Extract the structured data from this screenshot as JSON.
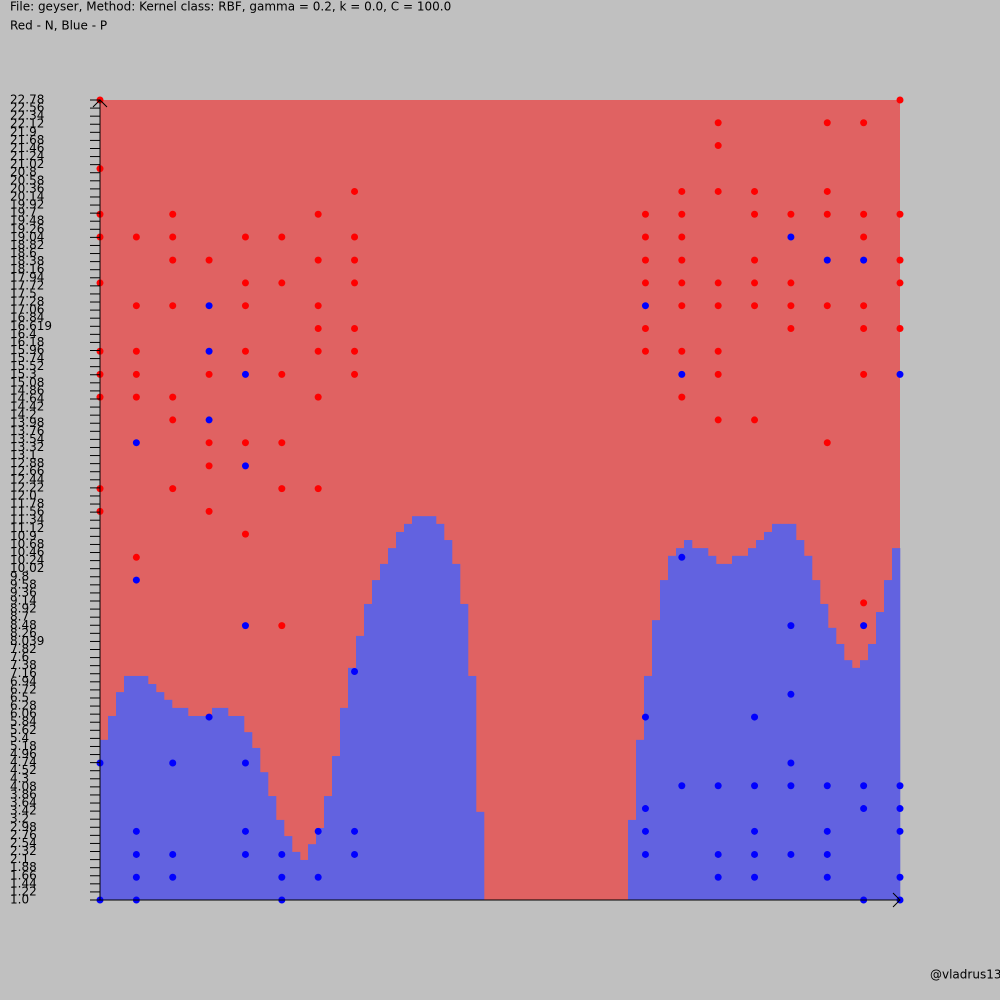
{
  "chart_data": {
    "type": "svm-regions",
    "title": "File: geyser, Method: Kernel class: RBF, gamma = 0.2, k = 0.0, C = 100.0",
    "subtitle": "Red - N, Blue - P",
    "credit": "@vladrus13",
    "xlim": [
      0,
      22
    ],
    "ylim": [
      1,
      22.78
    ],
    "yticks": [
      {
        "value": 1,
        "label": "1.0"
      },
      1.22,
      1.44,
      1.66,
      1.88,
      2.1,
      2.32,
      2.54,
      2.76,
      2.98,
      3.2,
      3.42,
      3.64,
      3.86,
      4.08,
      4.3,
      4.52,
      4.74,
      4.96,
      5.18,
      5.4,
      5.62,
      5.84,
      6.06,
      6.28,
      6.5,
      6.72,
      6.94,
      7.16,
      7.38,
      7.6,
      7.82,
      8.039,
      8.26,
      8.48,
      8.7,
      8.92,
      9.14,
      9.36,
      9.58,
      9.8,
      10.02,
      10.24,
      10.46,
      10.68,
      10.9,
      11.12,
      11.34,
      11.56,
      11.78,
      {
        "value": 12,
        "label": "12.0"
      },
      12.22,
      12.44,
      12.66,
      12.88,
      13.1,
      13.32,
      13.54,
      13.76,
      13.98,
      14.2,
      14.42,
      14.64,
      14.86,
      15.08,
      15.3,
      15.52,
      15.74,
      15.96,
      16.18,
      16.4,
      16.619,
      16.84,
      17.06,
      17.28,
      17.5,
      17.72,
      17.94,
      18.16,
      18.38,
      18.6,
      18.82,
      19.04,
      19.26,
      19.48,
      19.7,
      19.92,
      20.14,
      20.36,
      20.58,
      20.8,
      21.02,
      21.24,
      21.46,
      21.68,
      21.9,
      22.12,
      22.34,
      22.56,
      22.78
    ],
    "region_colors": {
      "negative": "#e06262",
      "positive": "#6262e0"
    },
    "boundary": [
      5.36,
      6.01,
      6.66,
      7.1,
      7.1,
      7.1,
      6.88,
      6.66,
      6.45,
      6.23,
      6.23,
      6.01,
      6.01,
      6.01,
      6.23,
      6.23,
      6.01,
      6.01,
      5.57,
      5.14,
      4.48,
      3.83,
      3.18,
      2.74,
      2.31,
      2.09,
      2.52,
      2.96,
      3.83,
      4.92,
      6.23,
      7.32,
      8.19,
      9.06,
      9.71,
      10.15,
      10.58,
      11.02,
      11.24,
      11.45,
      11.45,
      11.45,
      11.24,
      10.8,
      10.15,
      9.06,
      7.1,
      3.4,
      1,
      1,
      1,
      1,
      1,
      1,
      1,
      1,
      1,
      1,
      1,
      1,
      1,
      1,
      1,
      1,
      1,
      1,
      3.18,
      5.36,
      7.1,
      8.62,
      9.71,
      10.37,
      10.58,
      10.8,
      10.58,
      10.58,
      10.37,
      10.15,
      10.15,
      10.37,
      10.37,
      10.58,
      10.8,
      11.02,
      11.24,
      11.24,
      11.24,
      10.8,
      10.37,
      9.71,
      9.06,
      8.41,
      7.97,
      7.53,
      7.32,
      7.53,
      7.97,
      8.84,
      9.71,
      10.58
    ],
    "series": [
      {
        "color": "#ff0000",
        "x": [
          0,
          0,
          0,
          0,
          0,
          0,
          0,
          0,
          0,
          0,
          1,
          1,
          1,
          1,
          1,
          1,
          2,
          2,
          2,
          2,
          2,
          2,
          2,
          3,
          3,
          3,
          3,
          3,
          4,
          4,
          4,
          4,
          4,
          4,
          5,
          5,
          5,
          5,
          5,
          5,
          6,
          6,
          6,
          6,
          6,
          6,
          6,
          7,
          7,
          7,
          7,
          7,
          7,
          7,
          15,
          15,
          15,
          15,
          15,
          15,
          16,
          16,
          16,
          16,
          16,
          16,
          16,
          16,
          17,
          17,
          17,
          17,
          17,
          17,
          17,
          17,
          18,
          18,
          18,
          18,
          18,
          18,
          19,
          19,
          19,
          19,
          20,
          20,
          20,
          20,
          20,
          21,
          21,
          21,
          21,
          21,
          21,
          21,
          22,
          22,
          22,
          22,
          22
        ],
        "values": [
          22.78,
          20.91,
          19.67,
          19.05,
          17.8,
          15.94,
          15.31,
          14.69,
          12.2,
          11.58,
          19.05,
          17.18,
          15.94,
          15.31,
          14.69,
          10.33,
          19.67,
          19.05,
          18.42,
          17.18,
          14.69,
          14.07,
          12.2,
          18.42,
          15.31,
          13.45,
          12.82,
          11.58,
          19.05,
          17.8,
          17.18,
          15.94,
          13.45,
          10.96,
          19.05,
          17.8,
          15.31,
          13.45,
          12.2,
          8.47,
          19.67,
          18.42,
          17.18,
          16.56,
          15.94,
          14.69,
          12.2,
          20.29,
          19.05,
          18.42,
          17.8,
          16.56,
          15.94,
          15.31,
          19.67,
          19.05,
          18.42,
          17.8,
          16.56,
          15.94,
          20.29,
          19.67,
          19.05,
          18.42,
          17.8,
          17.18,
          15.94,
          14.69,
          22.16,
          21.54,
          20.29,
          17.8,
          17.18,
          15.94,
          15.31,
          14.07,
          20.29,
          19.67,
          18.42,
          17.8,
          17.18,
          14.07,
          19.67,
          17.8,
          17.18,
          16.56,
          22.16,
          20.29,
          19.67,
          17.18,
          13.45,
          22.16,
          19.67,
          19.05,
          17.18,
          16.56,
          15.31,
          9.09,
          22.78,
          19.67,
          18.42,
          17.8,
          16.56
        ]
      },
      {
        "color": "#0000ff",
        "x": [
          0,
          0,
          1,
          1,
          1,
          1,
          1,
          1,
          2,
          2,
          2,
          3,
          3,
          3,
          3,
          4,
          4,
          4,
          4,
          4,
          4,
          5,
          5,
          5,
          6,
          6,
          7,
          7,
          7,
          15,
          15,
          15,
          15,
          15,
          16,
          16,
          16,
          17,
          17,
          17,
          18,
          18,
          18,
          18,
          18,
          19,
          19,
          19,
          19,
          19,
          19,
          20,
          20,
          20,
          20,
          20,
          21,
          21,
          21,
          21,
          21,
          22,
          22,
          22,
          22,
          22,
          22
        ],
        "values": [
          4.73,
          1,
          13.45,
          9.71,
          2.87,
          2.24,
          1.62,
          1,
          4.73,
          2.24,
          1.62,
          17.18,
          15.94,
          14.07,
          5.98,
          15.31,
          12.82,
          8.47,
          4.73,
          2.87,
          2.24,
          2.24,
          1.62,
          1,
          2.87,
          1.62,
          7.22,
          2.87,
          2.24,
          17.18,
          5.98,
          3.49,
          2.87,
          2.24,
          15.31,
          10.33,
          4.11,
          4.11,
          2.24,
          1.62,
          5.98,
          4.11,
          2.87,
          2.24,
          1.62,
          19.05,
          8.47,
          6.6,
          4.73,
          4.11,
          2.24,
          18.42,
          4.11,
          2.87,
          2.24,
          1.62,
          18.42,
          8.47,
          4.11,
          3.49,
          1,
          15.31,
          4.11,
          3.49,
          2.87,
          1.62,
          1
        ]
      }
    ]
  }
}
